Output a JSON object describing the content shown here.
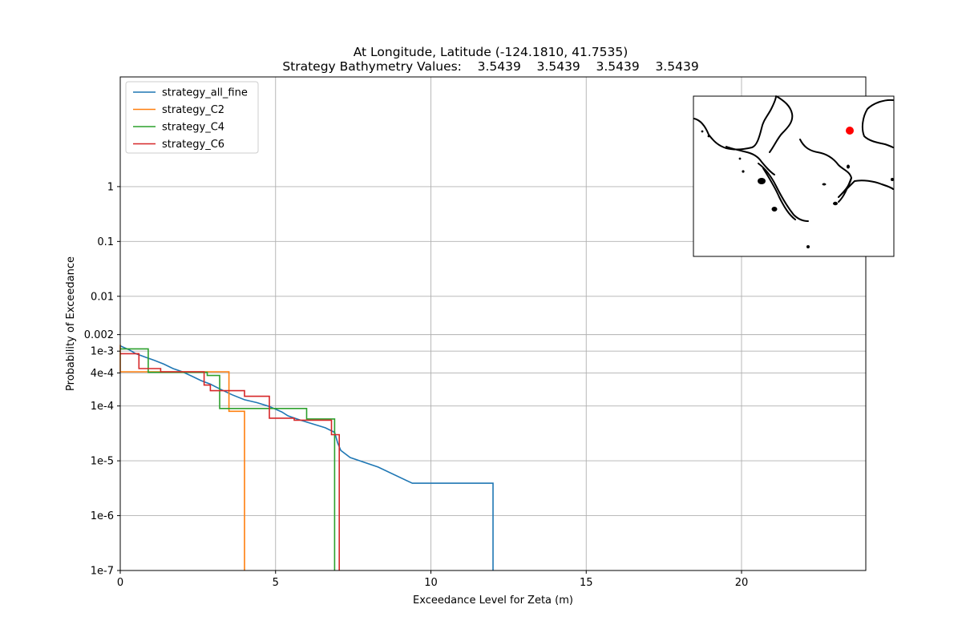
{
  "chart_data": {
    "type": "line",
    "title": "At Longitude, Latitude (-124.1810,  41.7535)",
    "subtitle": "Strategy Bathymetry Values:    3.5439    3.5439    3.5439    3.5439",
    "xlabel": "Exceedance Level for Zeta (m)",
    "ylabel": "Probability of Exceedance",
    "xlim": [
      0,
      24
    ],
    "ylim": [
      1e-07,
      100
    ],
    "yscale": "log",
    "grid": true,
    "legend_placement": "upper-left",
    "x_ticks": [
      {
        "value": 0,
        "label": "0"
      },
      {
        "value": 5,
        "label": "5"
      },
      {
        "value": 10,
        "label": "10"
      },
      {
        "value": 15,
        "label": "15"
      },
      {
        "value": 20,
        "label": "20"
      }
    ],
    "y_ticks": [
      {
        "value": 1,
        "label": "1"
      },
      {
        "value": 0.1,
        "label": "0.1"
      },
      {
        "value": 0.01,
        "label": "0.01"
      },
      {
        "value": 0.002,
        "label": "0.002"
      },
      {
        "value": 0.001,
        "label": "1e-3"
      },
      {
        "value": 0.0004,
        "label": "4e-4"
      },
      {
        "value": 0.0001,
        "label": "1e-4"
      },
      {
        "value": 1e-05,
        "label": "1e-5"
      },
      {
        "value": 1e-06,
        "label": "1e-6"
      },
      {
        "value": 1e-07,
        "label": "1e-7"
      }
    ],
    "series": [
      {
        "name": "strategy_all_fine",
        "color": "#1f77b4",
        "points": [
          [
            0,
            0.00125
          ],
          [
            0.3,
            0.00105
          ],
          [
            0.5,
            0.0009
          ],
          [
            0.8,
            0.00078
          ],
          [
            1.1,
            0.00068
          ],
          [
            1.4,
            0.00058
          ],
          [
            1.7,
            0.00048
          ],
          [
            2.0,
            0.00042
          ],
          [
            2.3,
            0.00035
          ],
          [
            2.6,
            0.00029
          ],
          [
            2.9,
            0.00025
          ],
          [
            3.2,
            0.000205
          ],
          [
            3.6,
            0.00016
          ],
          [
            4.0,
            0.00013
          ],
          [
            4.4,
            0.000115
          ],
          [
            4.8,
            9.8e-05
          ],
          [
            5.2,
            7.8e-05
          ],
          [
            5.4,
            6.6e-05
          ],
          [
            5.8,
            5.5e-05
          ],
          [
            6.2,
            4.7e-05
          ],
          [
            6.6,
            4e-05
          ],
          [
            6.9,
            3.3e-05
          ],
          [
            7.0,
            2.1e-05
          ],
          [
            7.1,
            1.55e-05
          ],
          [
            7.4,
            1.15e-05
          ],
          [
            8.3,
            7.7e-06
          ],
          [
            9.4,
            3.9e-06
          ],
          [
            12.0,
            3.9e-06
          ],
          [
            12.0,
            1e-07
          ]
        ]
      },
      {
        "name": "strategy_C2",
        "color": "#ff7f0e",
        "points": [
          [
            0,
            0.0013
          ],
          [
            0,
            0.00042
          ],
          [
            3.5,
            0.00042
          ],
          [
            3.5,
            8e-05
          ],
          [
            4.0,
            8e-05
          ],
          [
            4.0,
            1e-07
          ]
        ]
      },
      {
        "name": "strategy_C4",
        "color": "#2ca02c",
        "points": [
          [
            0,
            0.0011
          ],
          [
            0.9,
            0.0011
          ],
          [
            0.9,
            0.00041
          ],
          [
            2.8,
            0.00041
          ],
          [
            2.8,
            0.00036
          ],
          [
            3.2,
            0.00036
          ],
          [
            3.2,
            9e-05
          ],
          [
            6.0,
            9e-05
          ],
          [
            6.0,
            5.8e-05
          ],
          [
            6.9,
            5.8e-05
          ],
          [
            6.9,
            1e-07
          ]
        ]
      },
      {
        "name": "strategy_C6",
        "color": "#d62728",
        "points": [
          [
            0,
            0.0009
          ],
          [
            0.6,
            0.0009
          ],
          [
            0.6,
            0.00048
          ],
          [
            1.3,
            0.00048
          ],
          [
            1.3,
            0.00042
          ],
          [
            2.7,
            0.00042
          ],
          [
            2.7,
            0.00024
          ],
          [
            2.9,
            0.00024
          ],
          [
            2.9,
            0.00019
          ],
          [
            4.0,
            0.00019
          ],
          [
            4.0,
            0.00015
          ],
          [
            4.8,
            0.00015
          ],
          [
            4.8,
            6e-05
          ],
          [
            5.6,
            6e-05
          ],
          [
            5.6,
            5.5e-05
          ],
          [
            6.8,
            5.5e-05
          ],
          [
            6.8,
            3e-05
          ],
          [
            7.05,
            3e-05
          ],
          [
            7.05,
            1e-07
          ]
        ]
      }
    ]
  },
  "inset_map": {
    "marker_color": "#ff0000"
  }
}
